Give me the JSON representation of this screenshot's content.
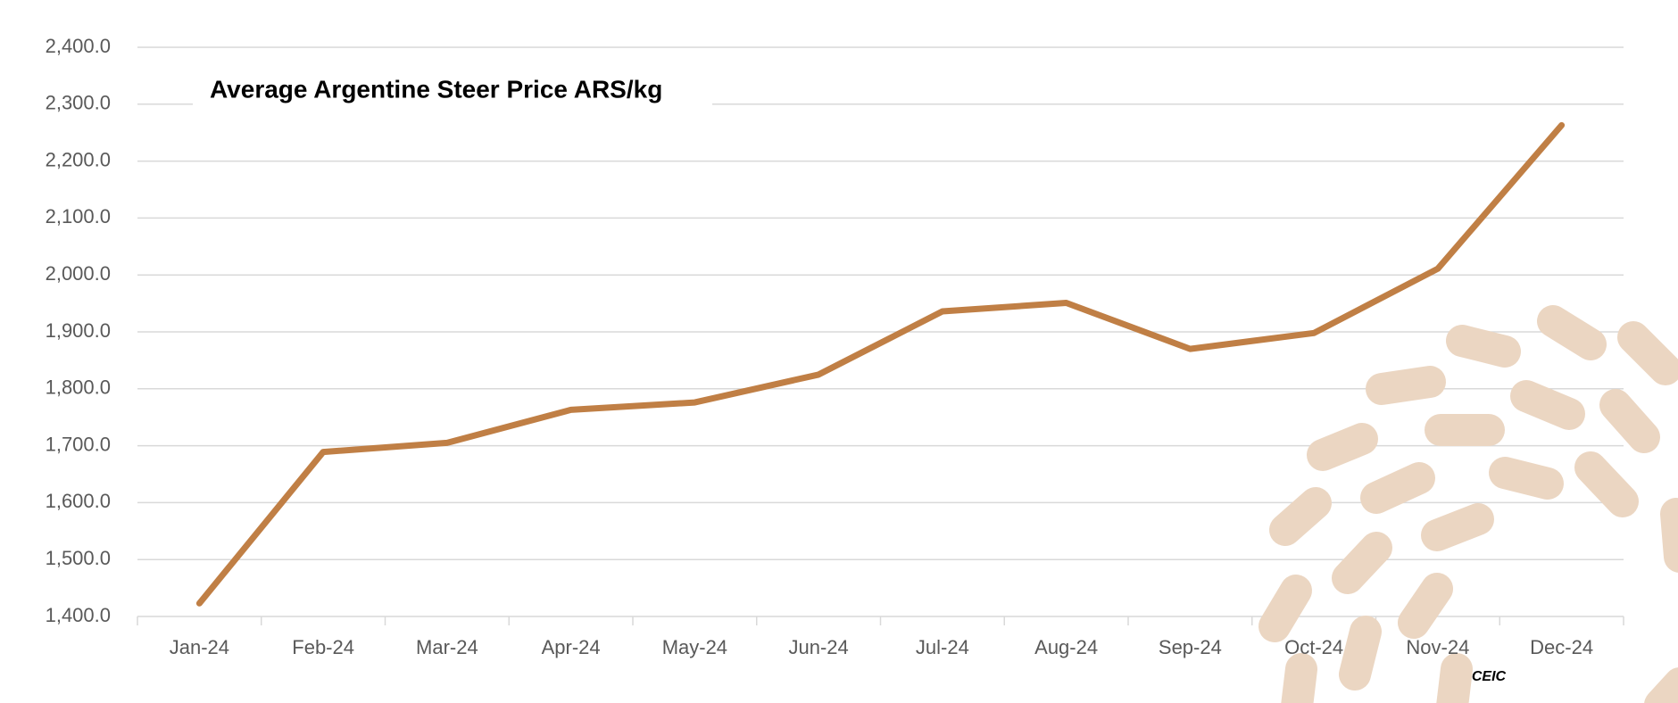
{
  "chart_data": {
    "type": "line",
    "title": "Average Argentine Steer Price ARS/kg",
    "source": "CEIC",
    "categories": [
      "Jan-24",
      "Feb-24",
      "Mar-24",
      "Apr-24",
      "May-24",
      "Jun-24",
      "Jul-24",
      "Aug-24",
      "Sep-24",
      "Oct-24",
      "Nov-24",
      "Dec-24"
    ],
    "values": [
      1423,
      1689,
      1705,
      1763,
      1776,
      1825,
      1936,
      1951,
      1870,
      1898,
      2011,
      2263
    ],
    "color": "#c07f45",
    "ylim": [
      1400,
      2400
    ],
    "yticks": [
      {
        "value": 1400,
        "label": "1,400.0"
      },
      {
        "value": 1500,
        "label": "1,500.0"
      },
      {
        "value": 1600,
        "label": "1,600.0"
      },
      {
        "value": 1700,
        "label": "1,700.0"
      },
      {
        "value": 1800,
        "label": "1,800.0"
      },
      {
        "value": 1900,
        "label": "1,900.0"
      },
      {
        "value": 2000,
        "label": "2,000.0"
      },
      {
        "value": 2100,
        "label": "2,100.0"
      },
      {
        "value": 2200,
        "label": "2,200.0"
      },
      {
        "value": 2300,
        "label": "2,300.0"
      },
      {
        "value": 2400,
        "label": "2,400.0"
      }
    ],
    "grid": true
  }
}
